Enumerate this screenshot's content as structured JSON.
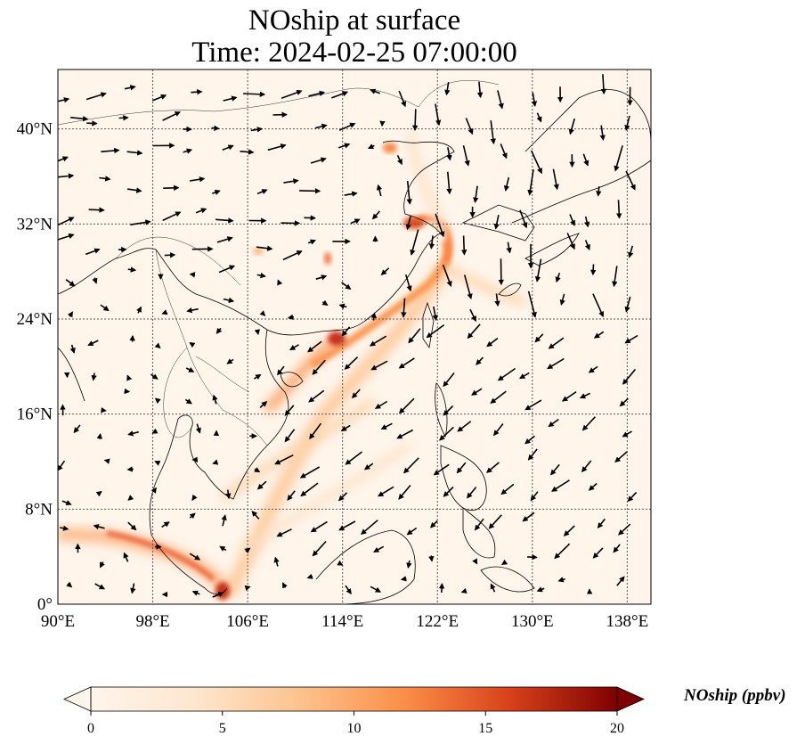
{
  "title": {
    "line1": "NOship at surface",
    "line2": "Time: 2024-02-25 07:00:00"
  },
  "map": {
    "lon_range": [
      90,
      140
    ],
    "lat_range": [
      0,
      45
    ],
    "x_ticks": [
      {
        "value": 90,
        "label": "90°E"
      },
      {
        "value": 98,
        "label": "98°E"
      },
      {
        "value": 106,
        "label": "106°E"
      },
      {
        "value": 114,
        "label": "114°E"
      },
      {
        "value": 122,
        "label": "122°E"
      },
      {
        "value": 130,
        "label": "130°E"
      },
      {
        "value": 138,
        "label": "138°E"
      }
    ],
    "y_ticks": [
      {
        "value": 0,
        "label": "0°"
      },
      {
        "value": 8,
        "label": "8°N"
      },
      {
        "value": 16,
        "label": "16°N"
      },
      {
        "value": 24,
        "label": "24°N"
      },
      {
        "value": 32,
        "label": "32°N"
      },
      {
        "value": 40,
        "label": "40°N"
      }
    ],
    "gridlines": true,
    "wind_vectors": true,
    "background_color": "#fff5eb"
  },
  "colorbar": {
    "label": "NOship (ppbv)",
    "min": 0,
    "max": 20,
    "extend": "both",
    "ticks": [
      {
        "value": 0,
        "label": "0"
      },
      {
        "value": 5,
        "label": "5"
      },
      {
        "value": 10,
        "label": "10"
      },
      {
        "value": 15,
        "label": "15"
      },
      {
        "value": 20,
        "label": "20"
      }
    ],
    "colors": [
      "#fff5eb",
      "#fdd2a5",
      "#fd9243",
      "#df4f23",
      "#9b0d07",
      "#7f0000"
    ]
  }
}
